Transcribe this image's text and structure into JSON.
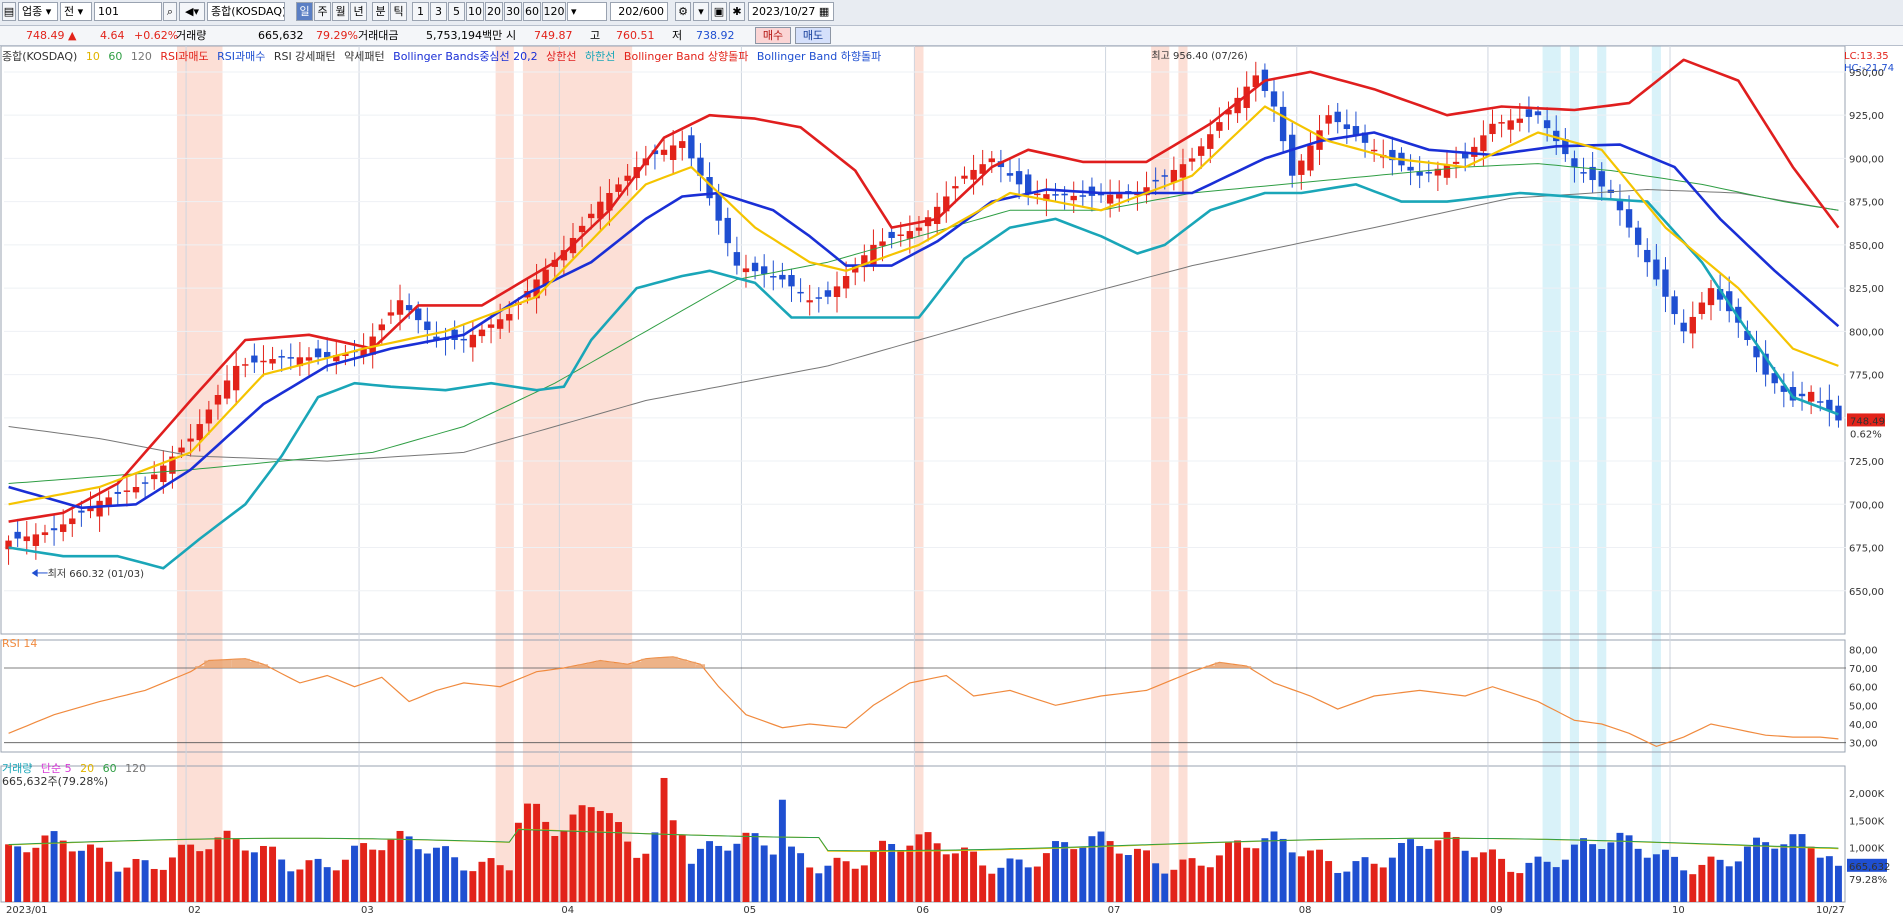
{
  "toolbar": {
    "market": "업종",
    "period": "전",
    "code": "101",
    "index_name": "종합(KOSDAQ)",
    "timeframes": [
      "일",
      "주",
      "월",
      "년",
      "분",
      "틱"
    ],
    "active_timeframe": "일",
    "intervals": [
      "1",
      "3",
      "5",
      "10",
      "20",
      "30",
      "60",
      "120"
    ],
    "count": "202/600",
    "date": "2023/10/27"
  },
  "quote": {
    "price": "748.49 ▲",
    "change": "4.64",
    "change_pct": "+0.62%",
    "volume_label": "거래량",
    "volume": "665,632",
    "volume_ratio": "79.29%",
    "amount_label": "거래대금",
    "amount": "5,753,194백만",
    "open_label": "시",
    "open": "749.87",
    "high_label": "고",
    "high": "760.51",
    "low_label": "저",
    "low": "738.92",
    "buy_label": "매수",
    "sell_label": "매도"
  },
  "legend_price": {
    "name": "종합(KOSDAQ)",
    "ma10": "10",
    "ma60": "60",
    "ma120": "120",
    "rsi_overbought": "RSI과매도",
    "rsi_oversold": "RSI과매수",
    "rsi_pattern": "RSI 강세패턴",
    "rsi_weak": "약세패턴",
    "bb_center": "Bollinger Bands중심선 20,2",
    "bb_upper": "상한선",
    "bb_lower": "하한선",
    "bb_breakup": "Bollinger Band 상향돌파",
    "bb_breakdown": "Bollinger Band 하향돌파"
  },
  "legend_rsi": {
    "name": "RSI 14"
  },
  "legend_vol": {
    "name": "거래량",
    "ma5": "단순 5",
    "ma20": "20",
    "ma60": "60",
    "ma120": "120",
    "value": "665,632주(79.28%)"
  },
  "corner": {
    "lc": "LC:13.35",
    "hc": "HC:-21.74"
  },
  "annotations": {
    "high": "최고 956.40 (07/26)",
    "low": "최저 660.32 (01/03)"
  },
  "price_tag": {
    "value": "748.49",
    "pct": "0.62%"
  },
  "vol_tag": {
    "value": "665,632",
    "pct": "79.28%"
  },
  "colors": {
    "up": "#e2231a",
    "down": "#1f4fd1",
    "ma10": "#f5c400",
    "ma60": "#2f9e44",
    "ma120": "#777777",
    "bb_upper": "#e01e1e",
    "bb_mid": "#1a2fd6",
    "bb_lower": "#1aa6b8",
    "rsi": "#f08a3e",
    "shade_red": "#fbd7cc",
    "shade_blue": "#d5f1f8"
  },
  "chart_data": [
    {
      "type": "candlestick",
      "title": "종합(KOSDAQ)",
      "ylim": [
        625,
        965
      ],
      "yticks": [
        650,
        675,
        700,
        725,
        750,
        775,
        800,
        825,
        850,
        875,
        900,
        925,
        950
      ],
      "ytick_labels": [
        "650,00",
        "675,00",
        "700,00",
        "725,00",
        "750,00",
        "775,00",
        "800,00",
        "825,00",
        "850,00",
        "875,00",
        "900,00",
        "925,00",
        "950,00"
      ],
      "month_labels": [
        "2023/01",
        "02",
        "03",
        "04",
        "05",
        "06",
        "07",
        "08",
        "09",
        "10",
        "10/27"
      ],
      "month_start_index": [
        0,
        20,
        39,
        61,
        81,
        100,
        121,
        142,
        163,
        183,
        201
      ],
      "n_bars": 202,
      "anchors_close": [
        [
          0,
          679
        ],
        [
          5,
          685
        ],
        [
          10,
          702
        ],
        [
          15,
          712
        ],
        [
          20,
          738
        ],
        [
          25,
          780
        ],
        [
          30,
          785
        ],
        [
          35,
          785
        ],
        [
          39,
          790
        ],
        [
          43,
          818
        ],
        [
          47,
          795
        ],
        [
          50,
          795
        ],
        [
          55,
          810
        ],
        [
          58,
          830
        ],
        [
          61,
          847
        ],
        [
          65,
          875
        ],
        [
          70,
          900
        ],
        [
          74,
          910
        ],
        [
          76,
          890
        ],
        [
          80,
          838
        ],
        [
          85,
          830
        ],
        [
          88,
          818
        ],
        [
          90,
          820
        ],
        [
          95,
          850
        ],
        [
          100,
          860
        ],
        [
          105,
          890
        ],
        [
          108,
          900
        ],
        [
          112,
          880
        ],
        [
          118,
          878
        ],
        [
          124,
          880
        ],
        [
          130,
          900
        ],
        [
          135,
          935
        ],
        [
          137,
          948
        ],
        [
          139,
          930
        ],
        [
          141,
          890
        ],
        [
          145,
          925
        ],
        [
          150,
          905
        ],
        [
          155,
          890
        ],
        [
          160,
          900
        ],
        [
          163,
          920
        ],
        [
          168,
          925
        ],
        [
          172,
          895
        ],
        [
          176,
          880
        ],
        [
          180,
          840
        ],
        [
          184,
          800
        ],
        [
          187,
          825
        ],
        [
          190,
          805
        ],
        [
          193,
          775
        ],
        [
          196,
          760
        ],
        [
          198,
          765
        ],
        [
          201,
          748.49
        ]
      ],
      "ma10_anchors": [
        [
          0,
          700
        ],
        [
          10,
          710
        ],
        [
          20,
          730
        ],
        [
          28,
          775
        ],
        [
          39,
          790
        ],
        [
          48,
          800
        ],
        [
          58,
          820
        ],
        [
          70,
          885
        ],
        [
          75,
          895
        ],
        [
          82,
          860
        ],
        [
          88,
          840
        ],
        [
          92,
          835
        ],
        [
          100,
          850
        ],
        [
          110,
          880
        ],
        [
          120,
          870
        ],
        [
          130,
          890
        ],
        [
          138,
          930
        ],
        [
          145,
          910
        ],
        [
          152,
          900
        ],
        [
          160,
          895
        ],
        [
          168,
          915
        ],
        [
          175,
          905
        ],
        [
          182,
          860
        ],
        [
          190,
          825
        ],
        [
          196,
          790
        ],
        [
          201,
          780
        ]
      ],
      "ma60_anchors": [
        [
          0,
          712
        ],
        [
          20,
          720
        ],
        [
          40,
          730
        ],
        [
          50,
          745
        ],
        [
          60,
          770
        ],
        [
          70,
          800
        ],
        [
          80,
          830
        ],
        [
          90,
          840
        ],
        [
          100,
          855
        ],
        [
          110,
          870
        ],
        [
          120,
          870
        ],
        [
          130,
          880
        ],
        [
          140,
          885
        ],
        [
          150,
          890
        ],
        [
          160,
          895
        ],
        [
          168,
          897
        ],
        [
          176,
          893
        ],
        [
          186,
          885
        ],
        [
          195,
          875
        ],
        [
          201,
          870
        ]
      ],
      "ma120_anchors": [
        [
          0,
          745
        ],
        [
          10,
          738
        ],
        [
          20,
          728
        ],
        [
          35,
          725
        ],
        [
          50,
          730
        ],
        [
          70,
          760
        ],
        [
          90,
          780
        ],
        [
          110,
          810
        ],
        [
          130,
          838
        ],
        [
          150,
          860
        ],
        [
          165,
          877
        ],
        [
          180,
          882
        ],
        [
          190,
          880
        ],
        [
          201,
          870
        ]
      ],
      "bb_upper_anchors": [
        [
          0,
          690
        ],
        [
          6,
          695
        ],
        [
          12,
          712
        ],
        [
          20,
          760
        ],
        [
          26,
          795
        ],
        [
          33,
          798
        ],
        [
          40,
          790
        ],
        [
          45,
          815
        ],
        [
          52,
          815
        ],
        [
          60,
          840
        ],
        [
          66,
          870
        ],
        [
          72,
          912
        ],
        [
          77,
          925
        ],
        [
          82,
          923
        ],
        [
          87,
          918
        ],
        [
          93,
          893
        ],
        [
          97,
          860
        ],
        [
          102,
          865
        ],
        [
          108,
          895
        ],
        [
          112,
          905
        ],
        [
          118,
          898
        ],
        [
          125,
          898
        ],
        [
          132,
          920
        ],
        [
          138,
          945
        ],
        [
          143,
          950
        ],
        [
          150,
          940
        ],
        [
          158,
          925
        ],
        [
          164,
          930
        ],
        [
          172,
          928
        ],
        [
          178,
          932
        ],
        [
          184,
          957
        ],
        [
          190,
          945
        ],
        [
          196,
          895
        ],
        [
          201,
          860
        ]
      ],
      "bb_mid_anchors": [
        [
          0,
          710
        ],
        [
          8,
          698
        ],
        [
          14,
          700
        ],
        [
          20,
          720
        ],
        [
          28,
          758
        ],
        [
          35,
          780
        ],
        [
          42,
          790
        ],
        [
          50,
          798
        ],
        [
          57,
          822
        ],
        [
          64,
          840
        ],
        [
          70,
          865
        ],
        [
          74,
          878
        ],
        [
          78,
          880
        ],
        [
          84,
          870
        ],
        [
          88,
          855
        ],
        [
          92,
          838
        ],
        [
          97,
          838
        ],
        [
          102,
          852
        ],
        [
          108,
          875
        ],
        [
          114,
          882
        ],
        [
          120,
          880
        ],
        [
          130,
          880
        ],
        [
          138,
          900
        ],
        [
          144,
          910
        ],
        [
          150,
          915
        ],
        [
          156,
          905
        ],
        [
          163,
          902
        ],
        [
          170,
          907
        ],
        [
          177,
          908
        ],
        [
          183,
          895
        ],
        [
          188,
          865
        ],
        [
          194,
          835
        ],
        [
          201,
          803
        ]
      ],
      "bb_lower_anchors": [
        [
          0,
          675
        ],
        [
          6,
          670
        ],
        [
          12,
          670
        ],
        [
          17,
          663
        ],
        [
          21,
          680
        ],
        [
          26,
          700
        ],
        [
          30,
          728
        ],
        [
          34,
          762
        ],
        [
          38,
          770
        ],
        [
          42,
          768
        ],
        [
          48,
          766
        ],
        [
          53,
          770
        ],
        [
          58,
          766
        ],
        [
          61,
          768
        ],
        [
          64,
          795
        ],
        [
          69,
          825
        ],
        [
          74,
          832
        ],
        [
          77,
          835
        ],
        [
          82,
          828
        ],
        [
          86,
          808
        ],
        [
          90,
          808
        ],
        [
          95,
          808
        ],
        [
          100,
          808
        ],
        [
          105,
          842
        ],
        [
          110,
          860
        ],
        [
          115,
          865
        ],
        [
          120,
          855
        ],
        [
          124,
          845
        ],
        [
          127,
          850
        ],
        [
          132,
          870
        ],
        [
          138,
          880
        ],
        [
          142,
          880
        ],
        [
          148,
          885
        ],
        [
          153,
          875
        ],
        [
          158,
          875
        ],
        [
          166,
          880
        ],
        [
          174,
          877
        ],
        [
          180,
          875
        ],
        [
          186,
          840
        ],
        [
          190,
          808
        ],
        [
          196,
          762
        ],
        [
          201,
          752
        ]
      ]
    },
    {
      "type": "line",
      "title": "RSI 14",
      "ylim": [
        25,
        85
      ],
      "yticks": [
        30,
        40,
        50,
        60,
        70,
        80
      ],
      "ytick_labels": [
        "30,00",
        "40,00",
        "50,00",
        "60,00",
        "70,00",
        "80,00"
      ],
      "anchors": [
        [
          0,
          35
        ],
        [
          5,
          45
        ],
        [
          10,
          52
        ],
        [
          15,
          58
        ],
        [
          20,
          68
        ],
        [
          22,
          74
        ],
        [
          26,
          75
        ],
        [
          28,
          72
        ],
        [
          32,
          62
        ],
        [
          35,
          66
        ],
        [
          38,
          60
        ],
        [
          41,
          65
        ],
        [
          44,
          52
        ],
        [
          47,
          58
        ],
        [
          50,
          62
        ],
        [
          54,
          60
        ],
        [
          58,
          68
        ],
        [
          61,
          70
        ],
        [
          65,
          74
        ],
        [
          68,
          72
        ],
        [
          70,
          75
        ],
        [
          73,
          76
        ],
        [
          76,
          72
        ],
        [
          78,
          60
        ],
        [
          81,
          45
        ],
        [
          85,
          38
        ],
        [
          88,
          40
        ],
        [
          92,
          38
        ],
        [
          95,
          50
        ],
        [
          99,
          62
        ],
        [
          103,
          66
        ],
        [
          106,
          55
        ],
        [
          110,
          58
        ],
        [
          115,
          50
        ],
        [
          120,
          55
        ],
        [
          125,
          58
        ],
        [
          130,
          68
        ],
        [
          133,
          73
        ],
        [
          136,
          71
        ],
        [
          139,
          62
        ],
        [
          143,
          55
        ],
        [
          146,
          48
        ],
        [
          150,
          55
        ],
        [
          155,
          58
        ],
        [
          160,
          55
        ],
        [
          163,
          60
        ],
        [
          168,
          52
        ],
        [
          172,
          42
        ],
        [
          175,
          40
        ],
        [
          178,
          35
        ],
        [
          181,
          28
        ],
        [
          184,
          33
        ],
        [
          187,
          40
        ],
        [
          190,
          37
        ],
        [
          193,
          34
        ],
        [
          196,
          33
        ],
        [
          199,
          33
        ],
        [
          201,
          32
        ]
      ],
      "levels": [
        30,
        70
      ]
    },
    {
      "type": "bar",
      "title": "거래량",
      "ylim": [
        0,
        2500
      ],
      "yticks": [
        1000,
        1500,
        2000
      ],
      "ytick_labels": [
        "1,000K",
        "1,500K",
        "2,000K"
      ],
      "units": "K",
      "last_value": 665.632
    }
  ],
  "shade_red_ranges": [
    [
      19,
      23
    ],
    [
      54,
      55
    ],
    [
      57,
      68
    ],
    [
      100,
      100
    ],
    [
      126,
      127
    ],
    [
      129,
      129
    ]
  ],
  "shade_blue_ranges": [
    [
      169,
      170
    ],
    [
      172,
      172
    ],
    [
      175,
      175
    ],
    [
      181,
      181
    ]
  ]
}
